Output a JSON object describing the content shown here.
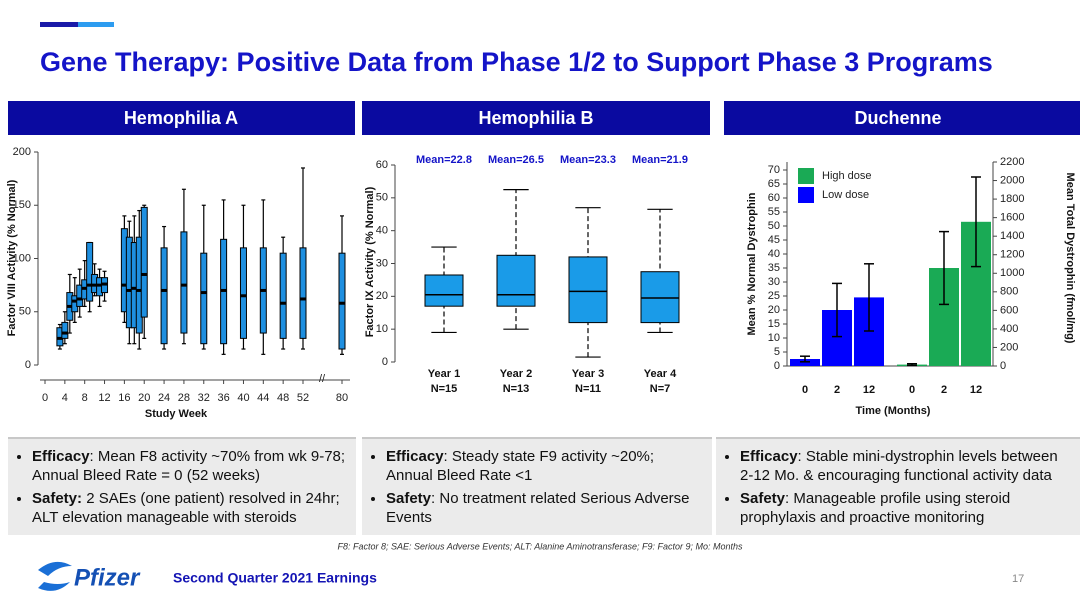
{
  "title": "Gene Therapy: Positive Data from Phase 1/2 to Support Phase 3 Programs",
  "panels": [
    {
      "header": "Hemophilia A",
      "bullets": [
        {
          "label": "Efficacy",
          "text": ": Mean F8 activity ~70% from wk 9-78; Annual Bleed Rate = 0 (52 weeks)"
        },
        {
          "label": "Safety:",
          "text": " 2 SAEs (one patient) resolved in 24hr; ALT elevation manageable with steroids"
        }
      ]
    },
    {
      "header": "Hemophilia B",
      "bullets": [
        {
          "label": "Efficacy",
          "text": ": Steady state F9 activity ~20%; Annual Bleed Rate <1"
        },
        {
          "label": "Safety",
          "text": ": No treatment related Serious Adverse Events"
        }
      ]
    },
    {
      "header": "Duchenne",
      "bullets": [
        {
          "label": "Efficacy",
          "text": ": Stable mini-dystrophin levels between 2-12 Mo. & encouraging functional activity data"
        },
        {
          "label": "Safety",
          "text": ": Manageable profile using steroid prophylaxis and proactive monitoring"
        }
      ]
    }
  ],
  "footnote": "F8: Factor 8; SAE: Serious Adverse Events; ALT: Alanine Aminotransferase; F9: Factor 9; Mo: Months",
  "footer": {
    "logo": "Pfizer",
    "text": "Second Quarter 2021 Earnings",
    "page": "17"
  },
  "chart_data": [
    {
      "type": "boxplot",
      "x_label": "Study Week",
      "y_label": "Factor VIII Activity (% Normal)",
      "color": "#1e8fe0",
      "xlim": [
        0,
        80
      ],
      "xticks": [
        0,
        4,
        8,
        12,
        16,
        20,
        24,
        28,
        32,
        36,
        40,
        44,
        48,
        52,
        80
      ],
      "x_break": true,
      "ylim": [
        0,
        200
      ],
      "yticks": [
        0,
        50,
        100,
        150,
        200
      ],
      "boxes": [
        {
          "x": 3,
          "min": 15,
          "q1": 18,
          "median": 25,
          "q3": 35,
          "max": 38
        },
        {
          "x": 4,
          "min": 20,
          "q1": 25,
          "median": 30,
          "q3": 40,
          "max": 50
        },
        {
          "x": 5,
          "min": 30,
          "q1": 42,
          "median": 55,
          "q3": 68,
          "max": 85
        },
        {
          "x": 6,
          "min": 40,
          "q1": 50,
          "median": 60,
          "q3": 65,
          "max": 82
        },
        {
          "x": 7,
          "min": 45,
          "q1": 55,
          "median": 62,
          "q3": 75,
          "max": 90
        },
        {
          "x": 8,
          "min": 55,
          "q1": 62,
          "median": 72,
          "q3": 80,
          "max": 98
        },
        {
          "x": 9,
          "min": 50,
          "q1": 60,
          "median": 75,
          "q3": 115,
          "max": 115
        },
        {
          "x": 10,
          "min": 65,
          "q1": 68,
          "median": 75,
          "q3": 85,
          "max": 95
        },
        {
          "x": 11,
          "min": 55,
          "q1": 65,
          "median": 75,
          "q3": 82,
          "max": 90
        },
        {
          "x": 12,
          "min": 60,
          "q1": 68,
          "median": 76,
          "q3": 82,
          "max": 88
        },
        {
          "x": 16,
          "min": 40,
          "q1": 50,
          "median": 75,
          "q3": 128,
          "max": 140
        },
        {
          "x": 17,
          "min": 20,
          "q1": 35,
          "median": 70,
          "q3": 120,
          "max": 135
        },
        {
          "x": 18,
          "min": 20,
          "q1": 35,
          "median": 72,
          "q3": 115,
          "max": 140
        },
        {
          "x": 19,
          "min": 15,
          "q1": 30,
          "median": 70,
          "q3": 120,
          "max": 145
        },
        {
          "x": 20,
          "min": 25,
          "q1": 45,
          "median": 85,
          "q3": 148,
          "max": 150
        },
        {
          "x": 24,
          "min": 15,
          "q1": 20,
          "median": 70,
          "q3": 110,
          "max": 130
        },
        {
          "x": 28,
          "min": 20,
          "q1": 30,
          "median": 75,
          "q3": 125,
          "max": 165
        },
        {
          "x": 32,
          "min": 15,
          "q1": 20,
          "median": 68,
          "q3": 105,
          "max": 150
        },
        {
          "x": 36,
          "min": 10,
          "q1": 20,
          "median": 70,
          "q3": 118,
          "max": 155
        },
        {
          "x": 40,
          "min": 15,
          "q1": 25,
          "median": 65,
          "q3": 110,
          "max": 150
        },
        {
          "x": 44,
          "min": 10,
          "q1": 30,
          "median": 70,
          "q3": 110,
          "max": 155
        },
        {
          "x": 48,
          "min": 15,
          "q1": 25,
          "median": 58,
          "q3": 105,
          "max": 120
        },
        {
          "x": 52,
          "min": 15,
          "q1": 25,
          "median": 62,
          "q3": 110,
          "max": 185
        },
        {
          "x": 80,
          "min": 10,
          "q1": 15,
          "median": 58,
          "q3": 105,
          "max": 140
        }
      ]
    },
    {
      "type": "boxplot",
      "y_label": "Factor IX Activity (% Normal)",
      "color": "#1a9be8",
      "categories": [
        "Year 1",
        "Year 2",
        "Year 3",
        "Year 4"
      ],
      "n_labels": [
        "N=15",
        "N=13",
        "N=11",
        "N=7"
      ],
      "annotations": [
        "Mean=22.8",
        "Mean=26.5",
        "Mean=23.3",
        "Mean=21.9"
      ],
      "ylim": [
        0,
        60
      ],
      "yticks": [
        0,
        10,
        20,
        30,
        40,
        50,
        60
      ],
      "boxes": [
        {
          "min": 9,
          "q1": 17,
          "median": 20.5,
          "q3": 26.5,
          "max": 35
        },
        {
          "min": 10,
          "q1": 17,
          "median": 20.5,
          "q3": 32.5,
          "max": 52.5
        },
        {
          "min": 1.5,
          "q1": 12,
          "median": 21.5,
          "q3": 32,
          "max": 47
        },
        {
          "min": 9,
          "q1": 12,
          "median": 19.5,
          "q3": 27.5,
          "max": 46.5
        }
      ]
    },
    {
      "type": "bar",
      "x_label": "Time (Months)",
      "y_label": "Mean % Normal Dystrophin",
      "y2_label": "Mean Total Dystrophin (fmol/mg)",
      "categories": [
        "0",
        "2",
        "12"
      ],
      "legend": "top-left",
      "ylim": [
        0,
        70
      ],
      "yticks": [
        0,
        5,
        10,
        15,
        20,
        25,
        30,
        35,
        40,
        45,
        50,
        55,
        60,
        65,
        70
      ],
      "y2lim": [
        0,
        2200
      ],
      "y2ticks": [
        0,
        200,
        400,
        600,
        800,
        1000,
        1200,
        1400,
        1600,
        1800,
        2000,
        2200
      ],
      "series": [
        {
          "name": "Low dose",
          "color": "#0000ff",
          "values": [
            2.5,
            20,
            24.5
          ],
          "errors": [
            1,
            9.5,
            12
          ]
        },
        {
          "name": "High dose",
          "color": "#1aaa55",
          "values": [
            0.5,
            35,
            51.5
          ],
          "errors": [
            0.3,
            13,
            16
          ]
        }
      ]
    }
  ]
}
